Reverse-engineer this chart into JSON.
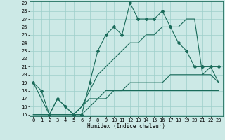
{
  "xlabel": "Humidex (Indice chaleur)",
  "x": [
    0,
    1,
    2,
    3,
    4,
    5,
    6,
    7,
    8,
    9,
    10,
    11,
    12,
    13,
    14,
    15,
    16,
    17,
    18,
    19,
    20,
    21,
    22,
    23
  ],
  "main_line": [
    19,
    18,
    15,
    17,
    16,
    15,
    15,
    19,
    23,
    25,
    26,
    25,
    29,
    27,
    27,
    27,
    28,
    26,
    24,
    23,
    21,
    21,
    21,
    21
  ],
  "line2": [
    19,
    17,
    15,
    17,
    16,
    15,
    16,
    18,
    20,
    21,
    22,
    23,
    24,
    24,
    25,
    25,
    26,
    26,
    26,
    27,
    27,
    20,
    21,
    19
  ],
  "line3": [
    15,
    15,
    15,
    15,
    15,
    15,
    15,
    16,
    17,
    17,
    18,
    18,
    18,
    18,
    18,
    18,
    18,
    18,
    18,
    18,
    18,
    18,
    18,
    18
  ],
  "line4": [
    15,
    15,
    15,
    15,
    15,
    15,
    16,
    17,
    17,
    18,
    18,
    18,
    19,
    19,
    19,
    19,
    19,
    20,
    20,
    20,
    20,
    20,
    20,
    19
  ],
  "ylim": [
    15,
    29
  ],
  "yticks": [
    15,
    16,
    17,
    18,
    19,
    20,
    21,
    22,
    23,
    24,
    25,
    26,
    27,
    28,
    29
  ],
  "xticks": [
    0,
    1,
    2,
    3,
    4,
    5,
    6,
    7,
    8,
    9,
    10,
    11,
    12,
    13,
    14,
    15,
    16,
    17,
    18,
    19,
    20,
    21,
    22,
    23
  ],
  "bg_color": "#cce9e6",
  "grid_color": "#9ecfca",
  "line_color": "#1a6b5a",
  "line_width": 0.8,
  "marker": "D",
  "marker_size": 2.0,
  "tick_fontsize": 5.0,
  "xlabel_fontsize": 5.5
}
